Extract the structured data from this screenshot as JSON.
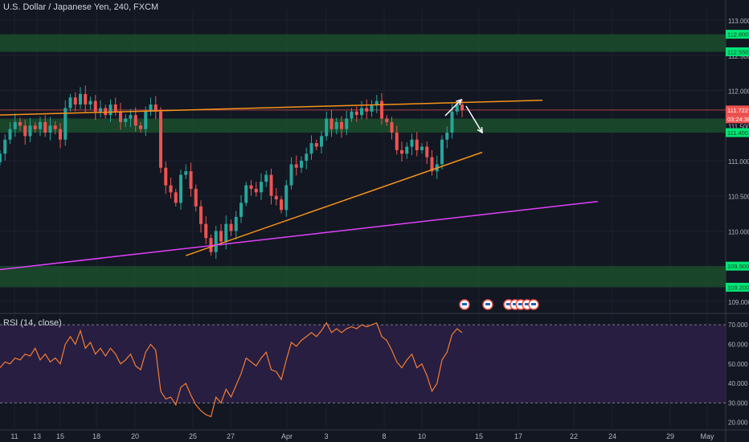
{
  "window": {
    "title": "U.S. Dollar / Japanese Yen, 240, FXCM"
  },
  "colors": {
    "background": "#131722",
    "grid": "#1e2230",
    "up": "#26a69a",
    "down": "#ef5350",
    "zone": "#1b4d2b",
    "trendline": "#f7931a",
    "magenta": "#e040fb",
    "rsi_line": "#f57c32",
    "rsi_band": "#2a1f45",
    "price_tag": "#ef5350",
    "level_tag": "#00e676"
  },
  "chart_data": [
    {
      "type": "candlestick",
      "title": "U.S. Dollar / Japanese Yen, 240, FXCM",
      "ylim": [
        108.85,
        113.15
      ],
      "y_ticks": [
        "113.000",
        "112.500",
        "112.000",
        "111.500",
        "111.000",
        "110.500",
        "110.000",
        "109.500",
        "109.000"
      ],
      "x_ticks": [
        "11",
        "13",
        "15",
        "18",
        "20",
        "25",
        "27",
        "Apr",
        "3",
        "8",
        "10",
        "15",
        "17",
        "22",
        "24",
        "29",
        "May"
      ],
      "price_labels": {
        "current": "111.722",
        "countdown": "03:24:38",
        "levels": [
          "112.800",
          "112.550",
          "111.400",
          "109.500",
          "109.200"
        ]
      },
      "zones": [
        [
          112.55,
          112.8
        ],
        [
          111.4,
          111.6
        ],
        [
          109.2,
          109.5
        ]
      ],
      "current_price": 111.722,
      "trendlines": [
        {
          "color": "orange",
          "from": [
            0,
            111.65
          ],
          "to": [
            108,
            111.86
          ]
        },
        {
          "color": "orange",
          "from": [
            37,
            109.65
          ],
          "to": [
            96,
            111.12
          ]
        },
        {
          "color": "magenta",
          "from": [
            0,
            109.45
          ],
          "to": [
            119,
            110.42
          ]
        }
      ],
      "closes": [
        111.1,
        111.3,
        111.45,
        111.55,
        111.5,
        111.35,
        111.5,
        111.45,
        111.55,
        111.4,
        111.5,
        111.45,
        111.3,
        111.75,
        111.9,
        111.8,
        111.95,
        111.8,
        111.85,
        111.7,
        111.75,
        111.65,
        111.8,
        111.7,
        111.55,
        111.6,
        111.65,
        111.5,
        111.45,
        111.7,
        111.8,
        111.7,
        110.9,
        110.65,
        110.55,
        110.4,
        110.8,
        110.85,
        110.6,
        110.35,
        110.1,
        109.9,
        109.7,
        110.0,
        109.85,
        110.1,
        110.0,
        110.2,
        110.4,
        110.65,
        110.6,
        110.55,
        110.7,
        110.8,
        110.5,
        110.45,
        110.3,
        110.65,
        110.95,
        110.9,
        111.0,
        111.1,
        111.25,
        111.2,
        111.35,
        111.6,
        111.45,
        111.55,
        111.45,
        111.6,
        111.7,
        111.65,
        111.75,
        111.7,
        111.8,
        111.85,
        111.6,
        111.55,
        111.4,
        111.15,
        111.1,
        111.2,
        111.3,
        111.15,
        111.2,
        111.05,
        110.85,
        110.95,
        111.3,
        111.4,
        111.7,
        111.8,
        111.72
      ],
      "rsi": {
        "title": "RSI (14, close)",
        "ylim": [
          17,
          75
        ],
        "levels": [
          30,
          70
        ],
        "y_ticks": [
          "70.000",
          "60.000",
          "50.000",
          "40.000",
          "30.000",
          "20.000"
        ],
        "values": [
          48,
          51,
          50,
          53,
          52,
          55,
          54,
          58,
          52,
          55,
          51,
          53,
          50,
          60,
          64,
          60,
          67,
          58,
          61,
          55,
          58,
          54,
          58,
          55,
          50,
          52,
          55,
          49,
          47,
          56,
          60,
          57,
          36,
          32,
          33,
          29,
          38,
          40,
          34,
          29,
          26,
          24,
          23,
          33,
          30,
          37,
          33,
          39,
          45,
          53,
          51,
          49,
          53,
          56,
          47,
          46,
          42,
          52,
          61,
          59,
          62,
          64,
          66,
          64,
          67,
          71,
          66,
          68,
          66,
          68,
          69,
          68,
          70,
          69,
          70,
          71,
          64,
          62,
          57,
          51,
          48,
          52,
          55,
          48,
          50,
          44,
          36,
          40,
          52,
          56,
          65,
          68,
          66
        ]
      }
    }
  ]
}
